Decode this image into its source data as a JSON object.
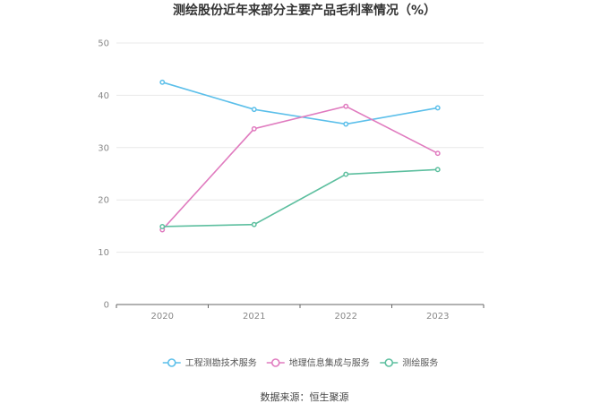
{
  "chart_data": {
    "type": "line",
    "title": "测绘股份近年来部分主要产品毛利率情况（%）",
    "x": [
      "2020",
      "2021",
      "2022",
      "2023"
    ],
    "yticks": [
      "0",
      "10",
      "20",
      "30",
      "40",
      "50"
    ],
    "ylim": [
      0,
      50
    ],
    "grid": true,
    "legend_position": "bottom",
    "series": [
      {
        "name": "工程测勘技术服务",
        "color": "#5bbfea",
        "values": [
          42.5,
          37.3,
          34.5,
          37.6
        ]
      },
      {
        "name": "地理信息集成与服务",
        "color": "#e07bbf",
        "values": [
          14.3,
          33.6,
          37.9,
          28.9
        ]
      },
      {
        "name": "测绘服务",
        "color": "#5dbf9f",
        "values": [
          14.9,
          15.3,
          24.9,
          25.8
        ]
      }
    ]
  },
  "source_text": "数据来源：恒生聚源"
}
